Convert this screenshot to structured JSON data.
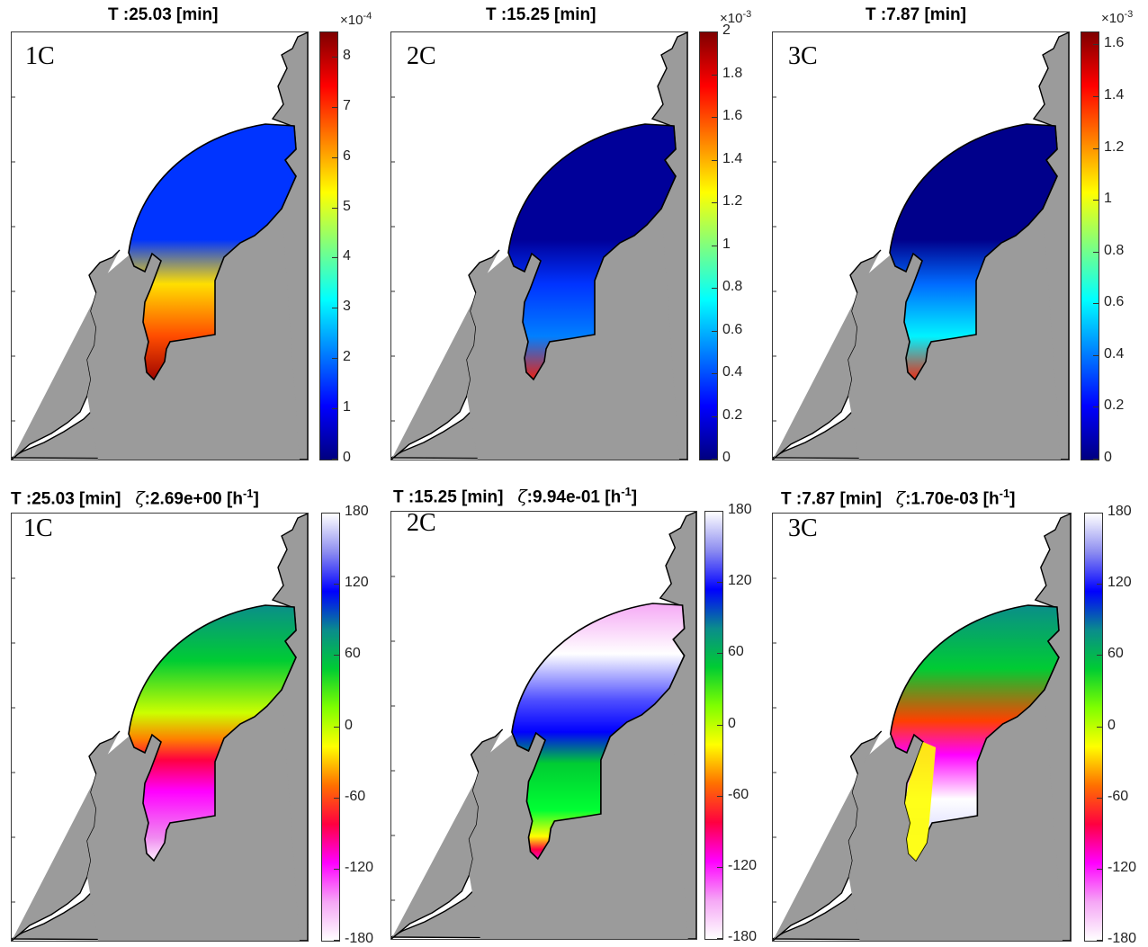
{
  "colors": {
    "land": "#9b9b9b",
    "background": "#ffffff",
    "coast": "#000000"
  },
  "chart_data": [
    {
      "type": "heatmap",
      "panel": "top-left",
      "label": "1C",
      "title": "T :25.03 [min]",
      "colorbar": {
        "multiplier": "×10",
        "exponent": "-4",
        "ticks": [
          "8",
          "7",
          "6",
          "5",
          "4",
          "3",
          "2",
          "1",
          "0"
        ],
        "clim": [
          0,
          8.5
        ],
        "colormap": "jet"
      },
      "field_description": "magnitude increasing toward the narrow southern channel",
      "bay_level": 1.5,
      "stem_level": 6.8,
      "tip_level": 8.3
    },
    {
      "type": "heatmap",
      "panel": "top-middle",
      "label": "2C",
      "title": "T :15.25 [min]",
      "colorbar": {
        "multiplier": "×10",
        "exponent": "-3",
        "ticks": [
          "2",
          "1.8",
          "1.6",
          "1.4",
          "1.2",
          "1",
          "0.8",
          "0.6",
          "0.4",
          "0.2",
          "0"
        ],
        "clim": [
          0,
          2
        ],
        "colormap": "jet"
      },
      "bay_level": 0.05,
      "stem_level": 0.5,
      "tip_level": 1.7
    },
    {
      "type": "heatmap",
      "panel": "top-right",
      "label": "3C",
      "title": "T :7.87 [min]",
      "colorbar": {
        "multiplier": "×10",
        "exponent": "-3",
        "ticks": [
          "1.6",
          "1.4",
          "1.2",
          "1",
          "0.8",
          "0.6",
          "0.4",
          "0.2",
          "0"
        ],
        "clim": [
          0,
          1.65
        ],
        "colormap": "jet"
      },
      "bay_level": 0.02,
      "stem_level": 0.6,
      "tip_level": 1.4
    },
    {
      "type": "heatmap",
      "panel": "bottom-left",
      "label": "1C",
      "title": "T :25.03 [min]",
      "zeta_label": "ζ",
      "zeta_value": ":2.69e+00 [h",
      "zeta_unit_exp": "-1",
      "zeta_close": "]",
      "colorbar": {
        "ticks": [
          "180",
          "120",
          "60",
          "0",
          "-60",
          "-120",
          "-180"
        ],
        "clim": [
          -180,
          180
        ],
        "colormap": "phase"
      }
    },
    {
      "type": "heatmap",
      "panel": "bottom-middle",
      "label": "2C",
      "title": "T :15.25 [min]",
      "zeta_label": "ζ",
      "zeta_value": ":9.94e-01 [h",
      "zeta_unit_exp": "-1",
      "zeta_close": "]",
      "colorbar": {
        "ticks": [
          "180",
          "120",
          "60",
          "0",
          "-60",
          "-120",
          "-180"
        ],
        "clim": [
          -180,
          180
        ],
        "colormap": "phase"
      }
    },
    {
      "type": "heatmap",
      "panel": "bottom-right",
      "label": "3C",
      "title": "T :7.87 [min]",
      "zeta_label": "ζ",
      "zeta_value": ":1.70e-03 [h",
      "zeta_unit_exp": "-1",
      "zeta_close": "]",
      "colorbar": {
        "ticks": [
          "180",
          "120",
          "60",
          "0",
          "-60",
          "-120",
          "-180"
        ],
        "clim": [
          -180,
          180
        ],
        "colormap": "phase"
      }
    }
  ]
}
